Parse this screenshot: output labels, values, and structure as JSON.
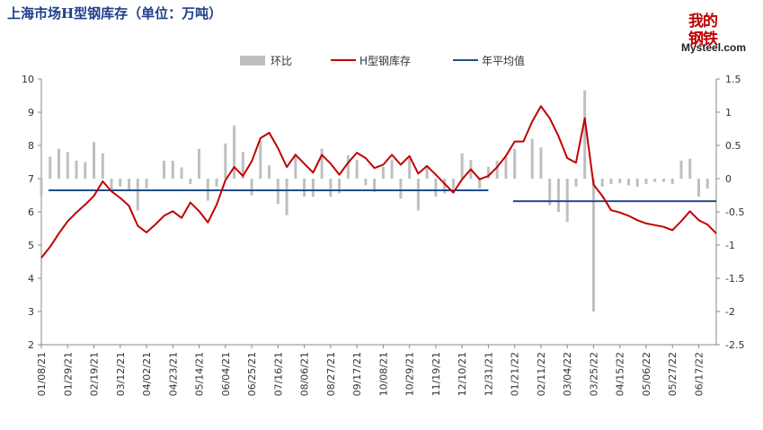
{
  "title": "上海市场H型钢库存（单位：万吨）",
  "logo": {
    "cn": "我的钢铁",
    "en": "Mysteel.com"
  },
  "chart_data": {
    "type": "bar+line",
    "title": "上海市场H型钢库存（单位：万吨）",
    "legend": [
      {
        "name": "环比",
        "type": "bar",
        "color": "#bfbfbf"
      },
      {
        "name": "H型钢库存",
        "type": "line",
        "color": "#c00000"
      },
      {
        "name": "年平均值",
        "type": "line",
        "color": "#1f4e8c"
      }
    ],
    "legend_position": "top-center",
    "x_tick_labels": [
      "01/08/21",
      "01/29/21",
      "02/19/21",
      "03/12/21",
      "04/02/21",
      "04/23/21",
      "05/14/21",
      "06/04/21",
      "06/25/21",
      "07/16/21",
      "08/06/21",
      "08/27/21",
      "09/17/21",
      "10/08/21",
      "10/29/21",
      "11/19/21",
      "12/10/21",
      "12/31/21",
      "01/21/22",
      "02/11/22",
      "03/04/22",
      "03/25/22",
      "04/15/22",
      "05/06/22",
      "05/27/22",
      "06/17/22"
    ],
    "y_left": {
      "min": 2,
      "max": 10,
      "ticks": [
        2,
        3,
        4,
        5,
        6,
        7,
        8,
        9,
        10
      ]
    },
    "y_right": {
      "min": -2.5,
      "max": 1.5,
      "ticks": [
        "1.5",
        "1",
        "0.5",
        "0",
        "-0.5",
        "-1",
        "-1.5",
        "-2",
        "-2.5"
      ]
    },
    "week_count": 78,
    "inventory": [
      4.62,
      4.95,
      5.35,
      5.72,
      5.98,
      6.22,
      6.48,
      6.92,
      6.62,
      6.42,
      6.18,
      5.58,
      5.38,
      5.62,
      5.88,
      6.02,
      5.82,
      6.28,
      6.02,
      5.68,
      6.22,
      6.95,
      7.35,
      7.08,
      7.52,
      8.22,
      8.38,
      7.92,
      7.35,
      7.72,
      7.45,
      7.18,
      7.72,
      7.45,
      7.12,
      7.48,
      7.78,
      7.62,
      7.32,
      7.42,
      7.72,
      7.42,
      7.68,
      7.15,
      7.38,
      7.12,
      6.85,
      6.58,
      6.98,
      7.28,
      6.98,
      7.08,
      7.35,
      7.68,
      8.12,
      8.12,
      8.72,
      9.18,
      8.82,
      8.28,
      7.62,
      7.48,
      8.82,
      6.82,
      6.48,
      6.05,
      5.98,
      5.88,
      5.75,
      5.65,
      5.6,
      5.55,
      5.45,
      5.72,
      6.02,
      5.75,
      5.62,
      5.35
    ],
    "wow_change": [
      -0.25,
      0.33,
      0.45,
      0.4,
      0.27,
      0.25,
      0.55,
      0.38,
      -0.18,
      -0.12,
      -0.18,
      -0.48,
      -0.15,
      0.0,
      0.27,
      0.27,
      0.17,
      -0.08,
      0.45,
      -0.33,
      -0.12,
      0.53,
      0.8,
      0.4,
      -0.25,
      0.57,
      0.2,
      -0.38,
      -0.55,
      0.38,
      -0.27,
      -0.27,
      0.45,
      -0.27,
      -0.22,
      0.35,
      0.28,
      -0.1,
      -0.2,
      0.18,
      0.28,
      -0.3,
      0.3,
      -0.48,
      0.2,
      -0.27,
      -0.22,
      -0.15,
      0.38,
      0.28,
      -0.15,
      0.18,
      0.27,
      0.33,
      0.45,
      0.0,
      0.6,
      0.47,
      -0.4,
      -0.5,
      -0.65,
      -0.12,
      1.33,
      -2.0,
      -0.12,
      -0.08,
      -0.07,
      -0.1,
      -0.12,
      -0.08,
      -0.05,
      -0.05,
      -0.08,
      0.27,
      0.3,
      -0.27,
      -0.15,
      0.0
    ],
    "annual_average": [
      {
        "year": "2021",
        "value": 6.65
      },
      {
        "year": "2022",
        "value": 6.32
      }
    ],
    "grid": false
  }
}
